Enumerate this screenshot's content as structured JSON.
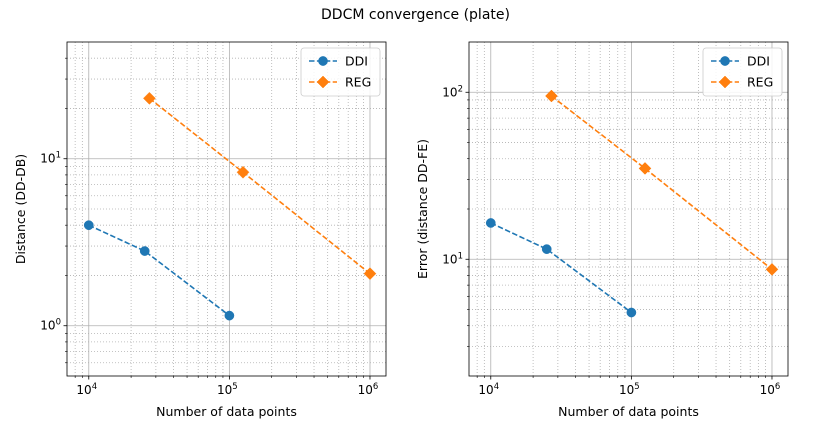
{
  "figure": {
    "title": "DDCM convergence (plate)"
  },
  "chart_data": [
    {
      "type": "line",
      "xscale": "log",
      "yscale": "log",
      "xlabel": "Number of data points",
      "ylabel": "Distance (DD-DB)",
      "xlim": [
        7000,
        1300000
      ],
      "ylim": [
        0.5,
        50
      ],
      "xticks": [
        {
          "label_base": "10",
          "label_exp": "4",
          "value": 10000
        },
        {
          "label_base": "10",
          "label_exp": "5",
          "value": 100000
        },
        {
          "label_base": "10",
          "label_exp": "6",
          "value": 1000000
        }
      ],
      "yticks": [
        {
          "label_base": "10",
          "label_exp": "0",
          "value": 1
        },
        {
          "label_base": "10",
          "label_exp": "1",
          "value": 10
        }
      ],
      "grid": true,
      "legend_position": "top-right",
      "series": [
        {
          "name": "DDI",
          "color": "#1f77b4",
          "marker": "circle",
          "linestyle": "dashed",
          "x": [
            10000,
            25000,
            100000
          ],
          "y": [
            4.0,
            2.8,
            1.15
          ]
        },
        {
          "name": "REG",
          "color": "#ff7f0e",
          "marker": "diamond",
          "linestyle": "dashed",
          "x": [
            27000,
            125000,
            1000000
          ],
          "y": [
            23,
            8.3,
            2.05
          ]
        }
      ]
    },
    {
      "type": "line",
      "xscale": "log",
      "yscale": "log",
      "xlabel": "Number of data points",
      "ylabel": "Error (distance DD-FE)",
      "xlim": [
        7000,
        1300000
      ],
      "ylim": [
        2,
        200
      ],
      "xticks": [
        {
          "label_base": "10",
          "label_exp": "4",
          "value": 10000
        },
        {
          "label_base": "10",
          "label_exp": "5",
          "value": 100000
        },
        {
          "label_base": "10",
          "label_exp": "6",
          "value": 1000000
        }
      ],
      "yticks": [
        {
          "label_base": "10",
          "label_exp": "1",
          "value": 10
        },
        {
          "label_base": "10",
          "label_exp": "2",
          "value": 100
        }
      ],
      "grid": true,
      "legend_position": "top-right",
      "series": [
        {
          "name": "DDI",
          "color": "#1f77b4",
          "marker": "circle",
          "linestyle": "dashed",
          "x": [
            10000,
            25000,
            100000
          ],
          "y": [
            16.5,
            11.5,
            4.8
          ]
        },
        {
          "name": "REG",
          "color": "#ff7f0e",
          "marker": "diamond",
          "linestyle": "dashed",
          "x": [
            27000,
            125000,
            1000000
          ],
          "y": [
            95,
            35,
            8.7
          ]
        }
      ]
    }
  ]
}
